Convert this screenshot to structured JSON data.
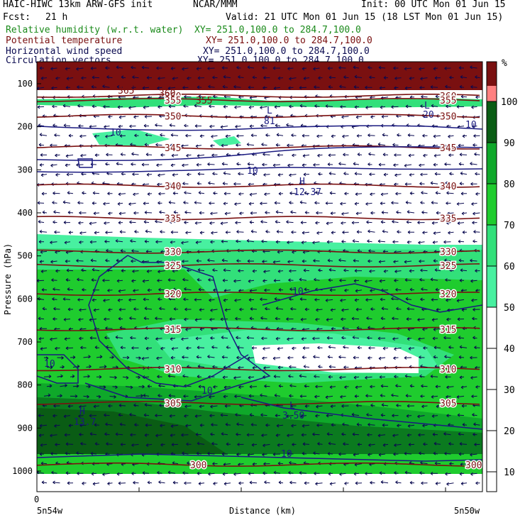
{
  "header": {
    "model": "HAIC-HIWC 13km ARW-GFS init",
    "org": "NCAR/MMM",
    "init": "Init: 00 UTC Mon 01 Jun 15",
    "fcst_label": "Fcst:",
    "fcst_value": "21 h",
    "valid": "Valid: 21 UTC Mon 01 Jun 15 (18 LST Mon 01 Jun 15)",
    "fields": [
      {
        "name": "Relative humidity (w.r.t. water)",
        "xy": "XY= 251.0,100.0 to 284.7,100.0",
        "color": "#1a8a1a"
      },
      {
        "name": "Potential temperature",
        "xy": "XY= 251.0,100.0 to 284.7,100.0",
        "color": "#7a1010"
      },
      {
        "name": "Horizontal wind speed",
        "xy": "XY= 251.0,100.0 to 284.7,100.0",
        "color": "#0a0a50"
      },
      {
        "name": "Circulation vectors",
        "xy": "XY= 251.0,100.0 to 284.7,100.0",
        "color": "#0a0a50"
      }
    ]
  },
  "chart_data": {
    "type": "heatmap",
    "xlabel": "Distance (km)",
    "ylabel": "Pressure (hPa)",
    "x_ticks": [
      "0"
    ],
    "x_end_labels": [
      "5n54w",
      "5n50w"
    ],
    "y_ticks": [
      100,
      200,
      300,
      400,
      500,
      600,
      700,
      800,
      900,
      1000
    ],
    "ylim": [
      1050,
      50
    ],
    "colorbar": {
      "unit": "%",
      "ticks": [
        10,
        20,
        30,
        40,
        50,
        60,
        70,
        80,
        90,
        100
      ],
      "colors": [
        "#ffffff",
        "#ffffff",
        "#ffffff",
        "#ffffff",
        "#ffffff",
        "#48f0a0",
        "#32e07a",
        "#1fcc2e",
        "#0fa82a",
        "#0b7a1f",
        "#0a5c14",
        "#ff8080",
        "#7a1010"
      ]
    },
    "theta_contours": [
      {
        "label": "360",
        "p": 128
      },
      {
        "label": "355",
        "p": 138
      },
      {
        "label": "350",
        "p": 175
      },
      {
        "label": "345",
        "p": 248
      },
      {
        "label": "340",
        "p": 337
      },
      {
        "label": "335",
        "p": 412
      },
      {
        "label": "330",
        "p": 490
      },
      {
        "label": "325",
        "p": 522
      },
      {
        "label": "320",
        "p": 588
      },
      {
        "label": "315",
        "p": 670
      },
      {
        "label": "310",
        "p": 763
      },
      {
        "label": "305",
        "p": 842
      },
      {
        "label": "300",
        "p": 985
      }
    ],
    "theta_extra_labels": [
      "365",
      "360",
      "355"
    ],
    "wind_labels": [
      "10",
      "10",
      "10",
      "10",
      "10",
      "10",
      "20",
      "10"
    ],
    "highs_lows": [
      {
        "symbol": "H",
        "value": "12.37"
      },
      {
        "symbol": "H",
        "value": "13.7"
      },
      {
        "symbol": "L",
        "value": "3.50"
      },
      {
        "symbol": "L",
        "value": "81"
      },
      {
        "symbol": "L",
        "value": "20"
      }
    ]
  }
}
